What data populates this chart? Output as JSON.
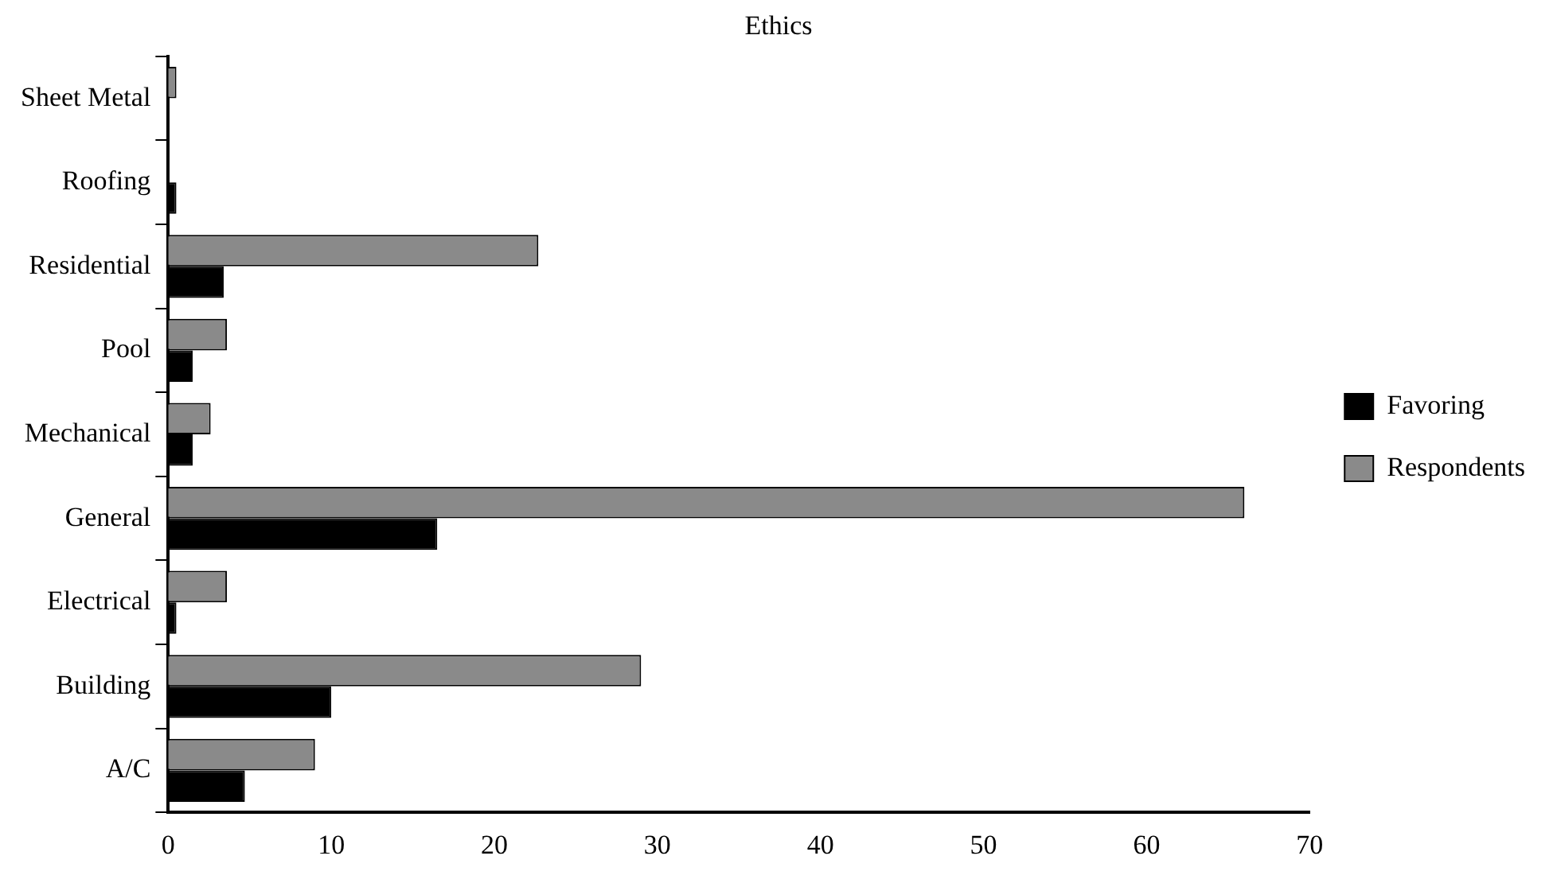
{
  "chart_data": {
    "type": "bar",
    "orientation": "horizontal",
    "title": "Ethics",
    "categories": [
      "Sheet Metal",
      "Roofing",
      "Residential",
      "Pool",
      "Mechanical",
      "General",
      "Electrical",
      "Building",
      "A/C"
    ],
    "series": [
      {
        "name": "Favoring",
        "color": "#000000",
        "values": [
          0,
          0.5,
          3.4,
          1.5,
          1.5,
          16.5,
          0.5,
          10,
          4.7
        ]
      },
      {
        "name": "Respondents",
        "color": "#8a8a8a",
        "values": [
          0.5,
          0,
          22.7,
          3.6,
          2.6,
          66,
          3.6,
          29,
          9
        ]
      }
    ],
    "xlim": [
      0,
      70
    ],
    "xticks": [
      0,
      10,
      20,
      30,
      40,
      50,
      60,
      70
    ],
    "grid": false,
    "legend": "right"
  }
}
